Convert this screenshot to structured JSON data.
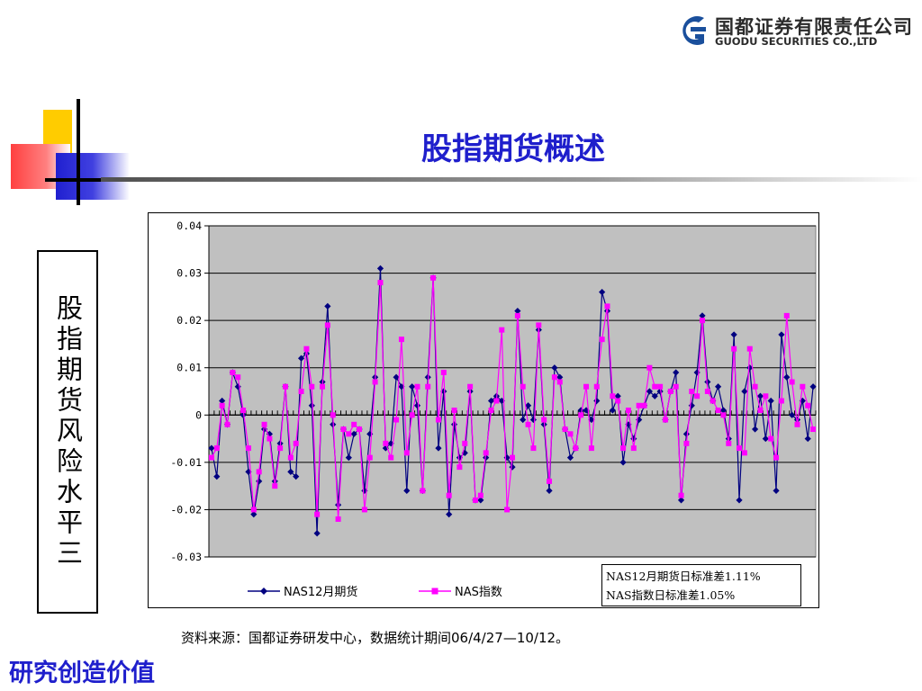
{
  "company": {
    "name_cn": "国都证券有限责任公司",
    "name_en": "GUODU SECURITIES CO.,LTD",
    "logo_color": "#1a4f9c"
  },
  "title": "股指期货概述",
  "sidebar_text": "股指期货风险水平三",
  "stats": {
    "line1": "NAS12月期货日标准差1.11%",
    "line2": "NAS指数日标准差1.05%"
  },
  "source": "资料来源：国都证券研发中心，数据统计期间06/4/27—10/12。",
  "slogan": "研究创造价值",
  "colors": {
    "title": "#1f1fcc",
    "futures": "#000080",
    "index": "#ff00ff",
    "plot_bg": "#c0c0c0"
  },
  "chart_data": {
    "type": "line",
    "title": "",
    "xlabel": "",
    "ylabel": "",
    "ylim": [
      -0.03,
      0.04
    ],
    "yticks": [
      0.04,
      0.03,
      0.02,
      0.01,
      0,
      -0.01,
      -0.02,
      -0.03
    ],
    "ytick_labels": [
      "0.04",
      "0.03",
      "0.02",
      "0.01",
      "0",
      "-0.01",
      "-0.02",
      "-0.03"
    ],
    "grid": true,
    "legend": "bottom",
    "series": [
      {
        "name": "NAS12月期货",
        "color": "#000080",
        "marker": "diamond",
        "values": [
          -0.007,
          -0.013,
          0.003,
          -0.002,
          0.009,
          0.006,
          0.0,
          -0.012,
          -0.021,
          -0.014,
          -0.003,
          -0.004,
          -0.014,
          -0.006,
          0.006,
          -0.012,
          -0.013,
          0.012,
          0.013,
          0.002,
          -0.025,
          0.007,
          0.023,
          -0.002,
          -0.019,
          -0.003,
          -0.009,
          -0.004,
          -0.003,
          -0.016,
          -0.004,
          0.008,
          0.031,
          -0.007,
          -0.006,
          0.008,
          0.006,
          -0.016,
          0.006,
          0.002,
          -0.016,
          0.008,
          0.029,
          -0.007,
          0.005,
          -0.021,
          -0.002,
          -0.009,
          -0.008,
          0.005,
          -0.018,
          -0.018,
          -0.009,
          0.003,
          0.004,
          0.003,
          -0.009,
          -0.011,
          0.022,
          -0.001,
          0.002,
          -0.001,
          0.018,
          -0.002,
          -0.016,
          0.01,
          0.008,
          -0.003,
          -0.009,
          -0.007,
          0.001,
          0.001,
          -0.001,
          0.003,
          0.026,
          0.022,
          0.001,
          0.004,
          -0.01,
          -0.002,
          -0.005,
          -0.001,
          0.002,
          0.005,
          0.004,
          0.005,
          -0.001,
          0.005,
          0.009,
          -0.018,
          -0.004,
          0.002,
          0.009,
          0.021,
          0.007,
          0.003,
          0.006,
          0.001,
          -0.005,
          0.017,
          -0.018,
          0.005,
          0.01,
          -0.003,
          0.004,
          -0.005,
          0.003,
          -0.016,
          0.017,
          0.008,
          0.0,
          -0.001,
          0.003,
          -0.005,
          0.006
        ]
      },
      {
        "name": "NAS指数",
        "color": "#ff00ff",
        "marker": "square",
        "values": [
          -0.009,
          -0.007,
          0.002,
          -0.002,
          0.009,
          0.008,
          0.001,
          -0.007,
          -0.02,
          -0.012,
          -0.002,
          -0.005,
          -0.015,
          -0.007,
          0.006,
          -0.009,
          -0.006,
          0.005,
          0.014,
          0.006,
          -0.021,
          0.006,
          0.019,
          0.0,
          -0.022,
          -0.003,
          -0.004,
          -0.002,
          -0.003,
          -0.02,
          -0.009,
          0.007,
          0.028,
          -0.006,
          -0.009,
          -0.001,
          0.016,
          -0.008,
          0.0,
          0.006,
          -0.016,
          0.006,
          0.029,
          -0.001,
          0.009,
          -0.017,
          0.001,
          -0.011,
          -0.006,
          0.006,
          -0.018,
          -0.017,
          -0.008,
          0.001,
          0.003,
          0.018,
          -0.02,
          -0.009,
          0.021,
          0.006,
          -0.002,
          -0.007,
          0.019,
          -0.001,
          -0.014,
          0.008,
          0.007,
          -0.003,
          -0.004,
          -0.007,
          0.0,
          0.006,
          -0.007,
          0.006,
          0.016,
          0.023,
          0.004,
          0.003,
          -0.007,
          0.001,
          -0.007,
          0.002,
          0.002,
          0.01,
          0.006,
          0.006,
          -0.001,
          0.005,
          0.006,
          -0.017,
          -0.006,
          0.005,
          0.004,
          0.02,
          0.005,
          0.003,
          0.001,
          0.0,
          -0.006,
          0.014,
          -0.007,
          -0.008,
          0.014,
          0.006,
          0.001,
          0.004,
          -0.005,
          -0.009,
          0.003,
          0.021,
          0.007,
          -0.002,
          0.006,
          0.002,
          -0.003
        ]
      }
    ]
  }
}
